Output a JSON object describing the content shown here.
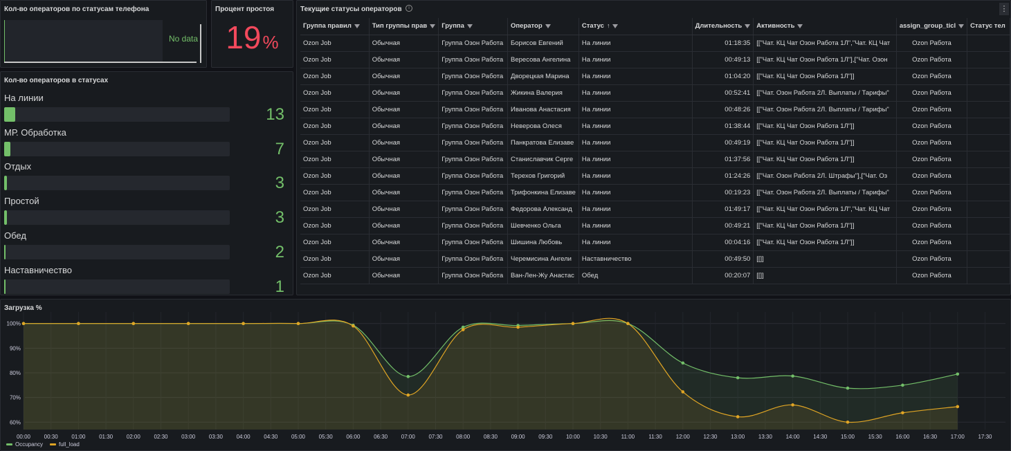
{
  "phone_panel": {
    "title": "Кол-во операторов по статусам телефона",
    "nodata": "No data"
  },
  "idle_panel": {
    "title": "Процент простоя",
    "value": "19",
    "unit": "%"
  },
  "status_panel": {
    "title": "Кол-во операторов в статусах",
    "max": 13,
    "items": [
      {
        "label": "На линии",
        "value": 13
      },
      {
        "label": "МР. Обработка",
        "value": 7
      },
      {
        "label": "Отдых",
        "value": 3
      },
      {
        "label": "Простой",
        "value": 3
      },
      {
        "label": "Обед",
        "value": 2
      },
      {
        "label": "Наставничество",
        "value": 1
      }
    ]
  },
  "table_panel": {
    "title": "Текущие статусы операторов",
    "info_icon": "i",
    "menu_icon": "⋮",
    "columns": [
      "Группа правил",
      "Тип группы прав",
      "Группа",
      "Оператор",
      "Статус",
      "Длительность",
      "Активность",
      "assign_group_ticl",
      "Статус тел"
    ],
    "rows": [
      [
        "Ozon Job",
        "Обычная",
        "Группа Озон Работа",
        "Борисов Евгений",
        "На линии",
        "01:18:35",
        "[[\"Чат. КЦ Чат Озон Работа 1Л\",\"Чат. КЦ Чат",
        "Ozon Работа"
      ],
      [
        "Ozon Job",
        "Обычная",
        "Группа Озон Работа",
        "Вересова Ангелина",
        "На линии",
        "00:49:13",
        "[[\"Чат. КЦ Чат Озон Работа 1Л\"],[\"Чат. Озон",
        "Ozon Работа"
      ],
      [
        "Ozon Job",
        "Обычная",
        "Группа Озон Работа",
        "Дворецкая Марина",
        "На линии",
        "01:04:20",
        "[[\"Чат. КЦ Чат Озон Работа 1Л\"]]",
        "Ozon Работа"
      ],
      [
        "Ozon Job",
        "Обычная",
        "Группа Озон Работа",
        "Жикина Валерия",
        "На линии",
        "00:52:41",
        "[[\"Чат. Озон Работа 2Л. Выплаты / Тарифы\"",
        "Ozon Работа"
      ],
      [
        "Ozon Job",
        "Обычная",
        "Группа Озон Работа",
        "Иванова Анастасия",
        "На линии",
        "00:48:26",
        "[[\"Чат. Озон Работа 2Л. Выплаты / Тарифы\"",
        "Ozon Работа"
      ],
      [
        "Ozon Job",
        "Обычная",
        "Группа Озон Работа",
        "Неверова Олеся",
        "На линии",
        "01:38:44",
        "[[\"Чат. КЦ Чат Озон Работа 1Л\"]]",
        "Ozon Работа"
      ],
      [
        "Ozon Job",
        "Обычная",
        "Группа Озон Работа",
        "Панкратова Елизаве",
        "На линии",
        "00:49:19",
        "[[\"Чат. КЦ Чат Озон Работа 1Л\"]]",
        "Ozon Работа"
      ],
      [
        "Ozon Job",
        "Обычная",
        "Группа Озон Работа",
        "Станиславчик Серге",
        "На линии",
        "01:37:56",
        "[[\"Чат. КЦ Чат Озон Работа 1Л\"]]",
        "Ozon Работа"
      ],
      [
        "Ozon Job",
        "Обычная",
        "Группа Озон Работа",
        "Терехов Григорий",
        "На линии",
        "01:24:26",
        "[[\"Чат. Озон Работа 2Л. Штрафы\"],[\"Чат. Оз",
        "Ozon Работа"
      ],
      [
        "Ozon Job",
        "Обычная",
        "Группа Озон Работа",
        "Трифонкина Елизаве",
        "На линии",
        "00:19:23",
        "[[\"Чат. Озон Работа 2Л. Выплаты / Тарифы\"",
        "Ozon Работа"
      ],
      [
        "Ozon Job",
        "Обычная",
        "Группа Озон Работа",
        "Федорова Александ",
        "На линии",
        "01:49:17",
        "[[\"Чат. КЦ Чат Озон Работа 1Л\",\"Чат. КЦ Чат",
        "Ozon Работа"
      ],
      [
        "Ozon Job",
        "Обычная",
        "Группа Озон Работа",
        "Шевченко Ольга",
        "На линии",
        "00:49:21",
        "[[\"Чат. КЦ Чат Озон Работа 1Л\"]]",
        "Ozon Работа"
      ],
      [
        "Ozon Job",
        "Обычная",
        "Группа Озон Работа",
        "Шишина Любовь",
        "На линии",
        "00:04:16",
        "[[\"Чат. КЦ Чат Озон Работа 1Л\"]]",
        "Ozon Работа"
      ],
      [
        "Ozon Job",
        "Обычная",
        "Группа Озон Работа",
        "Черемисина Ангели",
        "Наставничество",
        "00:49:50",
        "[[]]",
        "Ozon Работа"
      ],
      [
        "Ozon Job",
        "Обычная",
        "Группа Озон Работа",
        "Ван-Лен-Жу Анастас",
        "Обед",
        "00:20:07",
        "[[]]",
        "Ozon Работа"
      ]
    ]
  },
  "load_panel": {
    "title": "Загрузка %"
  },
  "chart_data": {
    "type": "line",
    "title": "Загрузка %",
    "x": [
      "00:00",
      "01:00",
      "02:00",
      "03:00",
      "04:00",
      "05:00",
      "06:00",
      "07:00",
      "08:00",
      "09:00",
      "10:00",
      "11:00",
      "12:00",
      "13:00",
      "14:00",
      "15:00",
      "16:00",
      "17:00"
    ],
    "x_ticks": [
      "00:00",
      "00:30",
      "01:00",
      "01:30",
      "02:00",
      "02:30",
      "03:00",
      "03:30",
      "04:00",
      "04:30",
      "05:00",
      "05:30",
      "06:00",
      "06:30",
      "07:00",
      "07:30",
      "08:00",
      "08:30",
      "09:00",
      "09:30",
      "10:00",
      "10:30",
      "11:00",
      "11:30",
      "12:00",
      "12:30",
      "13:00",
      "13:30",
      "14:00",
      "14:30",
      "15:00",
      "15:30",
      "16:00",
      "16:30",
      "17:00",
      "17:30"
    ],
    "y_ticks": [
      "60%",
      "70%",
      "80%",
      "90%",
      "100%"
    ],
    "ylim": [
      57,
      103
    ],
    "series": [
      {
        "name": "Occupancy",
        "color": "#73bf69",
        "values": [
          100,
          100,
          100,
          100,
          100,
          100,
          99.3,
          78.5,
          98.5,
          99.2,
          100,
          100,
          84,
          78,
          78.7,
          73.8,
          75,
          79.5
        ]
      },
      {
        "name": "full_load",
        "color": "#e0a524",
        "values": [
          100,
          100,
          100,
          100,
          100,
          100,
          99,
          71,
          97.5,
          98.5,
          100,
          100,
          72.3,
          62.2,
          67,
          60,
          63.8,
          66.3
        ]
      }
    ],
    "legend": "bottom-left"
  }
}
